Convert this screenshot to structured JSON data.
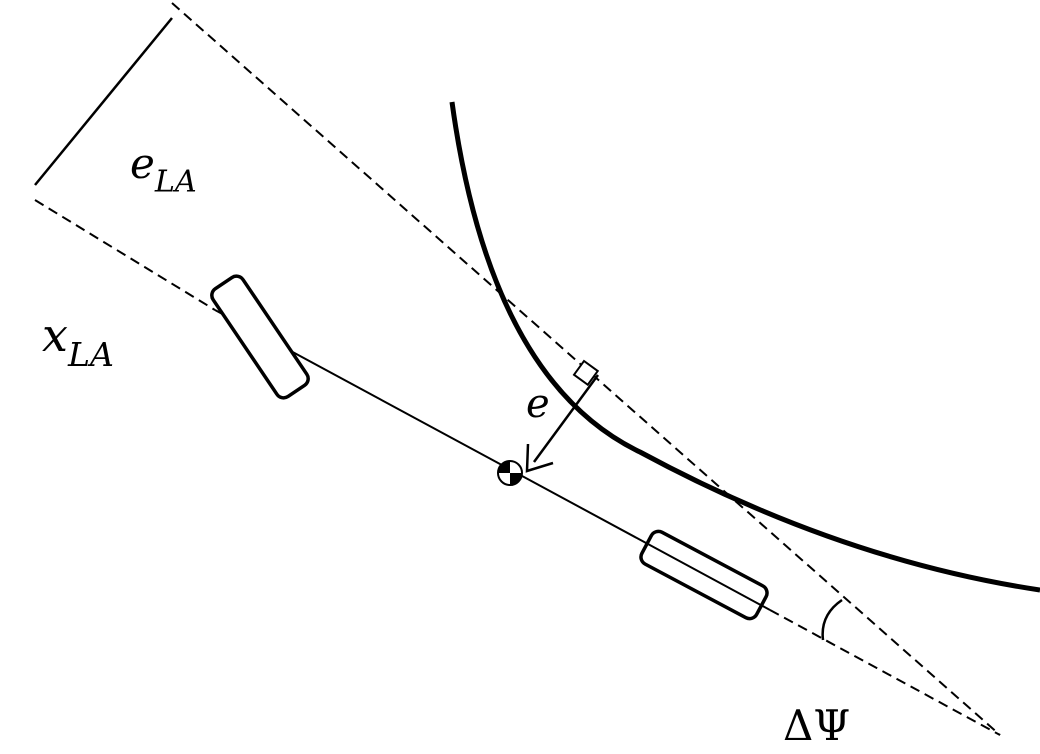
{
  "labels": {
    "e_la_base": "e",
    "e_la_sub": "LA",
    "x_la_base": "x",
    "x_la_sub": "LA",
    "e": "e",
    "delta_psi": "ΔΨ"
  },
  "colors": {
    "ink": "#000000",
    "background": "#ffffff"
  }
}
